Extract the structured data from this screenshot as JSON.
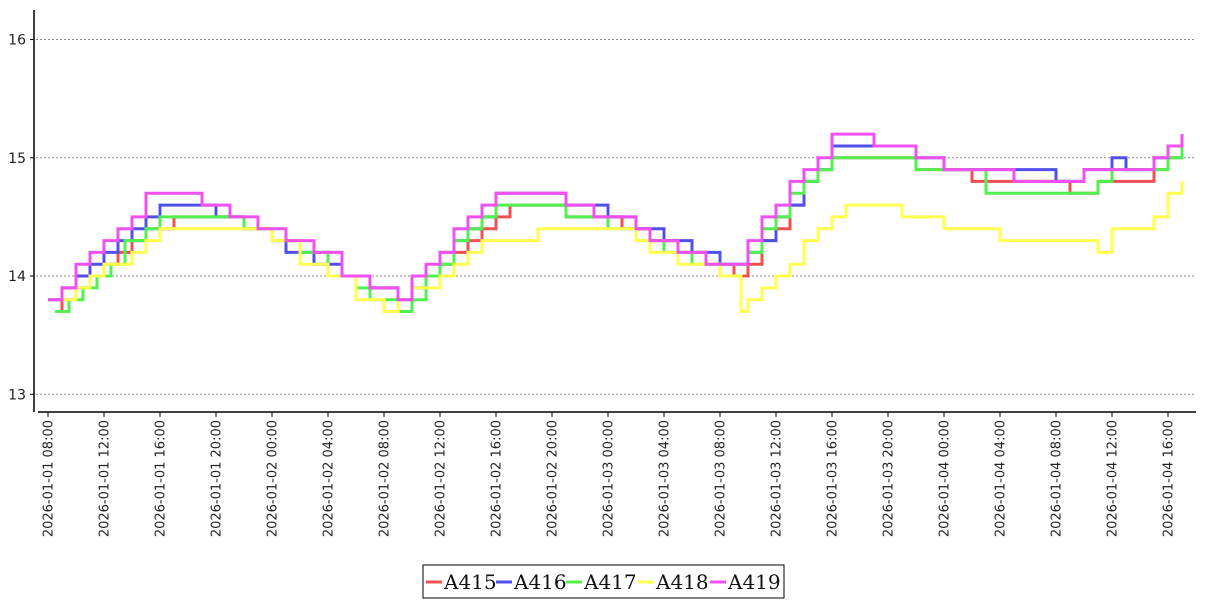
{
  "chart_data": {
    "type": "line",
    "title": "",
    "xlabel": "",
    "ylabel": "",
    "y_ticks": [
      "13",
      "14",
      "15",
      "16"
    ],
    "ylim": [
      12.85,
      16.25
    ],
    "xlim": [
      "2026-01-01 07:00",
      "2026-01-04 18:00"
    ],
    "x_ticks": [
      "2026-01-01 08:00",
      "2026-01-01 12:00",
      "2026-01-01 16:00",
      "2026-01-01 20:00",
      "2026-01-02 00:00",
      "2026-01-02 04:00",
      "2026-01-02 08:00",
      "2026-01-02 12:00",
      "2026-01-02 16:00",
      "2026-01-02 20:00",
      "2026-01-03 00:00",
      "2026-01-03 04:00",
      "2026-01-03 08:00",
      "2026-01-03 12:00",
      "2026-01-03 16:00",
      "2026-01-03 20:00",
      "2026-01-04 00:00",
      "2026-01-04 04:00",
      "2026-01-04 08:00",
      "2026-01-04 12:00",
      "2026-01-04 16:00"
    ],
    "grid": "horizontal dotted",
    "legend_position": "bottom-center",
    "series": [
      {
        "name": "A415",
        "color": "#f05050",
        "x": [
          "2026-01-01 08:30",
          "2026-01-01 09:00",
          "2026-01-01 10:00",
          "2026-01-01 11:00",
          "2026-01-01 12:00",
          "2026-01-01 13:00",
          "2026-01-01 14:00",
          "2026-01-01 15:00",
          "2026-01-01 17:00",
          "2026-01-01 19:00",
          "2026-01-01 22:00",
          "2026-01-02 00:00",
          "2026-01-02 02:00",
          "2026-01-02 04:00",
          "2026-01-02 06:00",
          "2026-01-02 07:00",
          "2026-01-02 09:00",
          "2026-01-02 10:00",
          "2026-01-02 11:00",
          "2026-01-02 12:00",
          "2026-01-02 13:00",
          "2026-01-02 14:00",
          "2026-01-02 15:00",
          "2026-01-02 16:00",
          "2026-01-02 17:00",
          "2026-01-02 21:00",
          "2026-01-03 01:00",
          "2026-01-03 03:00",
          "2026-01-03 05:00",
          "2026-01-03 07:00",
          "2026-01-03 09:00",
          "2026-01-03 10:00",
          "2026-01-03 11:00",
          "2026-01-03 12:00",
          "2026-01-03 13:00",
          "2026-01-03 14:00",
          "2026-01-03 15:00",
          "2026-01-03 16:00",
          "2026-01-03 17:00",
          "2026-01-03 20:00",
          "2026-01-03 22:00",
          "2026-01-04 00:00",
          "2026-01-04 02:00",
          "2026-01-04 05:00",
          "2026-01-04 08:00",
          "2026-01-04 09:00",
          "2026-01-04 10:00",
          "2026-01-04 11:00",
          "2026-01-04 12:00",
          "2026-01-04 13:00",
          "2026-01-04 15:00",
          "2026-01-04 16:00",
          "2026-01-04 17:00"
        ],
        "values": [
          13.7,
          13.8,
          13.9,
          14.0,
          14.1,
          14.2,
          14.3,
          14.4,
          14.5,
          14.5,
          14.4,
          14.3,
          14.2,
          14.0,
          14.0,
          13.9,
          13.8,
          13.9,
          14.0,
          14.1,
          14.2,
          14.3,
          14.4,
          14.5,
          14.6,
          14.5,
          14.4,
          14.3,
          14.2,
          14.1,
          14.0,
          14.1,
          14.3,
          14.4,
          14.6,
          14.8,
          14.9,
          15.0,
          15.0,
          15.0,
          14.9,
          14.9,
          14.8,
          14.8,
          14.8,
          14.7,
          14.7,
          14.8,
          14.8,
          14.8,
          14.9,
          15.0,
          15.1
        ]
      },
      {
        "name": "A416",
        "color": "#5050e8",
        "x": [
          "2026-01-01 08:00",
          "2026-01-01 09:00",
          "2026-01-01 10:00",
          "2026-01-01 11:00",
          "2026-01-01 12:00",
          "2026-01-01 13:00",
          "2026-01-01 14:00",
          "2026-01-01 15:00",
          "2026-01-01 16:00",
          "2026-01-01 20:00",
          "2026-01-01 22:00",
          "2026-01-02 00:00",
          "2026-01-02 01:00",
          "2026-01-02 03:00",
          "2026-01-02 05:00",
          "2026-01-02 07:00",
          "2026-01-02 09:00",
          "2026-01-02 10:00",
          "2026-01-02 11:00",
          "2026-01-02 12:00",
          "2026-01-02 13:00",
          "2026-01-02 14:00",
          "2026-01-02 15:00",
          "2026-01-02 16:00",
          "2026-01-02 21:00",
          "2026-01-03 00:00",
          "2026-01-03 02:00",
          "2026-01-03 04:00",
          "2026-01-03 06:00",
          "2026-01-03 08:00",
          "2026-01-03 10:00",
          "2026-01-03 11:00",
          "2026-01-03 12:00",
          "2026-01-03 13:00",
          "2026-01-03 14:00",
          "2026-01-03 15:00",
          "2026-01-03 16:00",
          "2026-01-03 19:00",
          "2026-01-03 22:00",
          "2026-01-04 00:00",
          "2026-01-04 08:00",
          "2026-01-04 10:00",
          "2026-01-04 11:00",
          "2026-01-04 12:00",
          "2026-01-04 13:00",
          "2026-01-04 15:00",
          "2026-01-04 16:00",
          "2026-01-04 17:00"
        ],
        "values": [
          13.8,
          13.9,
          14.0,
          14.1,
          14.2,
          14.3,
          14.4,
          14.5,
          14.6,
          14.5,
          14.4,
          14.3,
          14.2,
          14.1,
          14.0,
          13.9,
          13.8,
          13.9,
          14.0,
          14.2,
          14.3,
          14.4,
          14.5,
          14.7,
          14.6,
          14.5,
          14.4,
          14.3,
          14.2,
          14.1,
          14.2,
          14.3,
          14.5,
          14.6,
          14.8,
          14.9,
          15.1,
          15.1,
          15.0,
          14.9,
          14.8,
          14.9,
          14.9,
          15.0,
          14.9,
          15.0,
          15.1,
          15.2
        ]
      },
      {
        "name": "A417",
        "color": "#50f050",
        "x": [
          "2026-01-01 08:30",
          "2026-01-01 09:30",
          "2026-01-01 10:30",
          "2026-01-01 11:30",
          "2026-01-01 12:30",
          "2026-01-01 13:30",
          "2026-01-01 15:00",
          "2026-01-01 16:00",
          "2026-01-01 20:00",
          "2026-01-01 22:00",
          "2026-01-02 00:00",
          "2026-01-02 02:00",
          "2026-01-02 04:00",
          "2026-01-02 06:00",
          "2026-01-02 07:00",
          "2026-01-02 09:00",
          "2026-01-02 10:00",
          "2026-01-02 11:00",
          "2026-01-02 12:00",
          "2026-01-02 13:00",
          "2026-01-02 14:00",
          "2026-01-02 15:00",
          "2026-01-02 16:00",
          "2026-01-02 21:00",
          "2026-01-03 00:00",
          "2026-01-03 02:00",
          "2026-01-03 04:00",
          "2026-01-03 06:00",
          "2026-01-03 08:00",
          "2026-01-03 10:00",
          "2026-01-03 11:00",
          "2026-01-03 12:00",
          "2026-01-03 13:00",
          "2026-01-03 14:00",
          "2026-01-03 15:00",
          "2026-01-03 16:00",
          "2026-01-03 20:00",
          "2026-01-03 22:00",
          "2026-01-04 00:00",
          "2026-01-04 03:00",
          "2026-01-04 09:00",
          "2026-01-04 11:00",
          "2026-01-04 12:00",
          "2026-01-04 13:00",
          "2026-01-04 15:00",
          "2026-01-04 16:00",
          "2026-01-04 17:00"
        ],
        "values": [
          13.7,
          13.8,
          13.9,
          14.0,
          14.1,
          14.3,
          14.4,
          14.5,
          14.5,
          14.4,
          14.3,
          14.2,
          14.0,
          13.9,
          13.8,
          13.7,
          13.8,
          14.0,
          14.1,
          14.3,
          14.4,
          14.5,
          14.6,
          14.5,
          14.4,
          14.3,
          14.2,
          14.1,
          14.1,
          14.2,
          14.4,
          14.5,
          14.7,
          14.8,
          14.9,
          15.0,
          15.0,
          14.9,
          14.9,
          14.7,
          14.7,
          14.8,
          14.9,
          14.9,
          14.9,
          15.0,
          15.1
        ]
      },
      {
        "name": "A418",
        "color": "#ffff50",
        "x": [
          "2026-01-01 09:00",
          "2026-01-01 10:00",
          "2026-01-01 11:00",
          "2026-01-01 12:00",
          "2026-01-01 14:00",
          "2026-01-01 15:00",
          "2026-01-01 16:00",
          "2026-01-01 19:00",
          "2026-01-01 22:00",
          "2026-01-02 00:00",
          "2026-01-02 02:00",
          "2026-01-02 04:00",
          "2026-01-02 06:00",
          "2026-01-02 08:00",
          "2026-01-02 09:00",
          "2026-01-02 10:00",
          "2026-01-02 12:00",
          "2026-01-02 13:00",
          "2026-01-02 14:00",
          "2026-01-02 15:00",
          "2026-01-02 18:00",
          "2026-01-02 19:00",
          "2026-01-02 23:00",
          "2026-01-03 02:00",
          "2026-01-03 03:00",
          "2026-01-03 05:00",
          "2026-01-03 08:00",
          "2026-01-03 09:30",
          "2026-01-03 10:00",
          "2026-01-03 11:00",
          "2026-01-03 12:00",
          "2026-01-03 13:00",
          "2026-01-03 14:00",
          "2026-01-03 15:00",
          "2026-01-03 16:00",
          "2026-01-03 17:00",
          "2026-01-03 21:00",
          "2026-01-04 00:00",
          "2026-01-04 04:00",
          "2026-01-04 09:00",
          "2026-01-04 10:00",
          "2026-01-04 11:00",
          "2026-01-04 12:00",
          "2026-01-04 13:00",
          "2026-01-04 14:00",
          "2026-01-04 15:00",
          "2026-01-04 16:00",
          "2026-01-04 17:00"
        ],
        "values": [
          13.8,
          13.9,
          14.0,
          14.1,
          14.2,
          14.3,
          14.4,
          14.4,
          14.4,
          14.3,
          14.1,
          14.0,
          13.8,
          13.7,
          13.8,
          13.9,
          14.0,
          14.1,
          14.2,
          14.3,
          14.3,
          14.4,
          14.4,
          14.3,
          14.2,
          14.1,
          14.0,
          13.7,
          13.8,
          13.9,
          14.0,
          14.1,
          14.3,
          14.4,
          14.5,
          14.6,
          14.5,
          14.4,
          14.3,
          14.3,
          14.3,
          14.2,
          14.4,
          14.4,
          14.4,
          14.5,
          14.7,
          14.8
        ]
      },
      {
        "name": "A419",
        "color": "#f050f0",
        "x": [
          "2026-01-01 08:00",
          "2026-01-01 09:00",
          "2026-01-01 10:00",
          "2026-01-01 11:00",
          "2026-01-01 12:00",
          "2026-01-01 13:00",
          "2026-01-01 14:00",
          "2026-01-01 15:00",
          "2026-01-01 19:00",
          "2026-01-01 21:00",
          "2026-01-01 23:00",
          "2026-01-02 01:00",
          "2026-01-02 03:00",
          "2026-01-02 05:00",
          "2026-01-02 07:00",
          "2026-01-02 09:00",
          "2026-01-02 10:00",
          "2026-01-02 11:00",
          "2026-01-02 12:00",
          "2026-01-02 13:00",
          "2026-01-02 14:00",
          "2026-01-02 15:00",
          "2026-01-02 16:00",
          "2026-01-02 17:00",
          "2026-01-02 21:00",
          "2026-01-02 23:00",
          "2026-01-03 02:00",
          "2026-01-03 03:00",
          "2026-01-03 05:00",
          "2026-01-03 07:00",
          "2026-01-03 10:00",
          "2026-01-03 11:00",
          "2026-01-03 12:00",
          "2026-01-03 13:00",
          "2026-01-03 14:00",
          "2026-01-03 15:00",
          "2026-01-03 16:00",
          "2026-01-03 19:00",
          "2026-01-03 22:00",
          "2026-01-04 00:00",
          "2026-01-04 05:00",
          "2026-01-04 09:00",
          "2026-01-04 10:00",
          "2026-01-04 12:00",
          "2026-01-04 15:00",
          "2026-01-04 16:00",
          "2026-01-04 17:00"
        ],
        "values": [
          13.8,
          13.9,
          14.1,
          14.2,
          14.3,
          14.4,
          14.5,
          14.7,
          14.6,
          14.5,
          14.4,
          14.3,
          14.2,
          14.0,
          13.9,
          13.8,
          14.0,
          14.1,
          14.2,
          14.4,
          14.5,
          14.6,
          14.7,
          14.7,
          14.6,
          14.5,
          14.4,
          14.3,
          14.2,
          14.1,
          14.3,
          14.5,
          14.6,
          14.8,
          14.9,
          15.0,
          15.2,
          15.1,
          15.0,
          14.9,
          14.8,
          14.8,
          14.9,
          14.9,
          15.0,
          15.1,
          15.2
        ]
      }
    ]
  }
}
